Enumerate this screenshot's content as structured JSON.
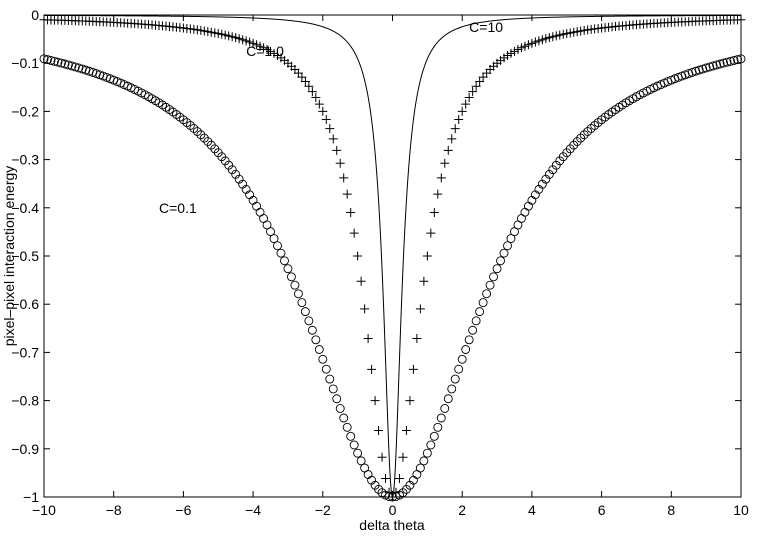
{
  "chart_data": {
    "type": "line",
    "title": "",
    "xlabel": "delta theta",
    "ylabel": "pixel–pixel interaction energy",
    "xlim": [
      -10,
      10
    ],
    "ylim": [
      -1,
      0
    ],
    "xticks": [
      -10,
      -8,
      -6,
      -4,
      -2,
      0,
      2,
      4,
      6,
      8,
      10
    ],
    "yticks": [
      0,
      -0.1,
      -0.2,
      -0.3,
      -0.4,
      -0.5,
      -0.6,
      -0.7,
      -0.8,
      -0.9,
      -1
    ],
    "xtick_labels": [
      "−10",
      "−8",
      "−6",
      "−4",
      "−2",
      "0",
      "2",
      "4",
      "6",
      "8",
      "10"
    ],
    "ytick_labels": [
      "0",
      "−0.1",
      "−0.2",
      "−0.3",
      "−0.4",
      "−0.5",
      "−0.6",
      "−0.7",
      "−0.8",
      "−0.9",
      "−1"
    ],
    "formula": "y = -1 / (1 + C * x^2)",
    "x_range": [
      -10,
      10
    ],
    "samples": 201,
    "grid": false,
    "series": [
      {
        "name": "C=0.1",
        "C": 0.1,
        "marker": "circle",
        "annotation": "C=0.1",
        "annotation_at": [
          -6.7,
          -0.4
        ]
      },
      {
        "name": "C=1.0",
        "C": 1.0,
        "marker": "plus",
        "annotation": "C=1.0",
        "annotation_at": [
          -4.2,
          -0.075
        ]
      },
      {
        "name": "C=10",
        "C": 10,
        "marker": "line",
        "annotation": "C=10",
        "annotation_at": [
          2.2,
          -0.025
        ]
      }
    ]
  }
}
